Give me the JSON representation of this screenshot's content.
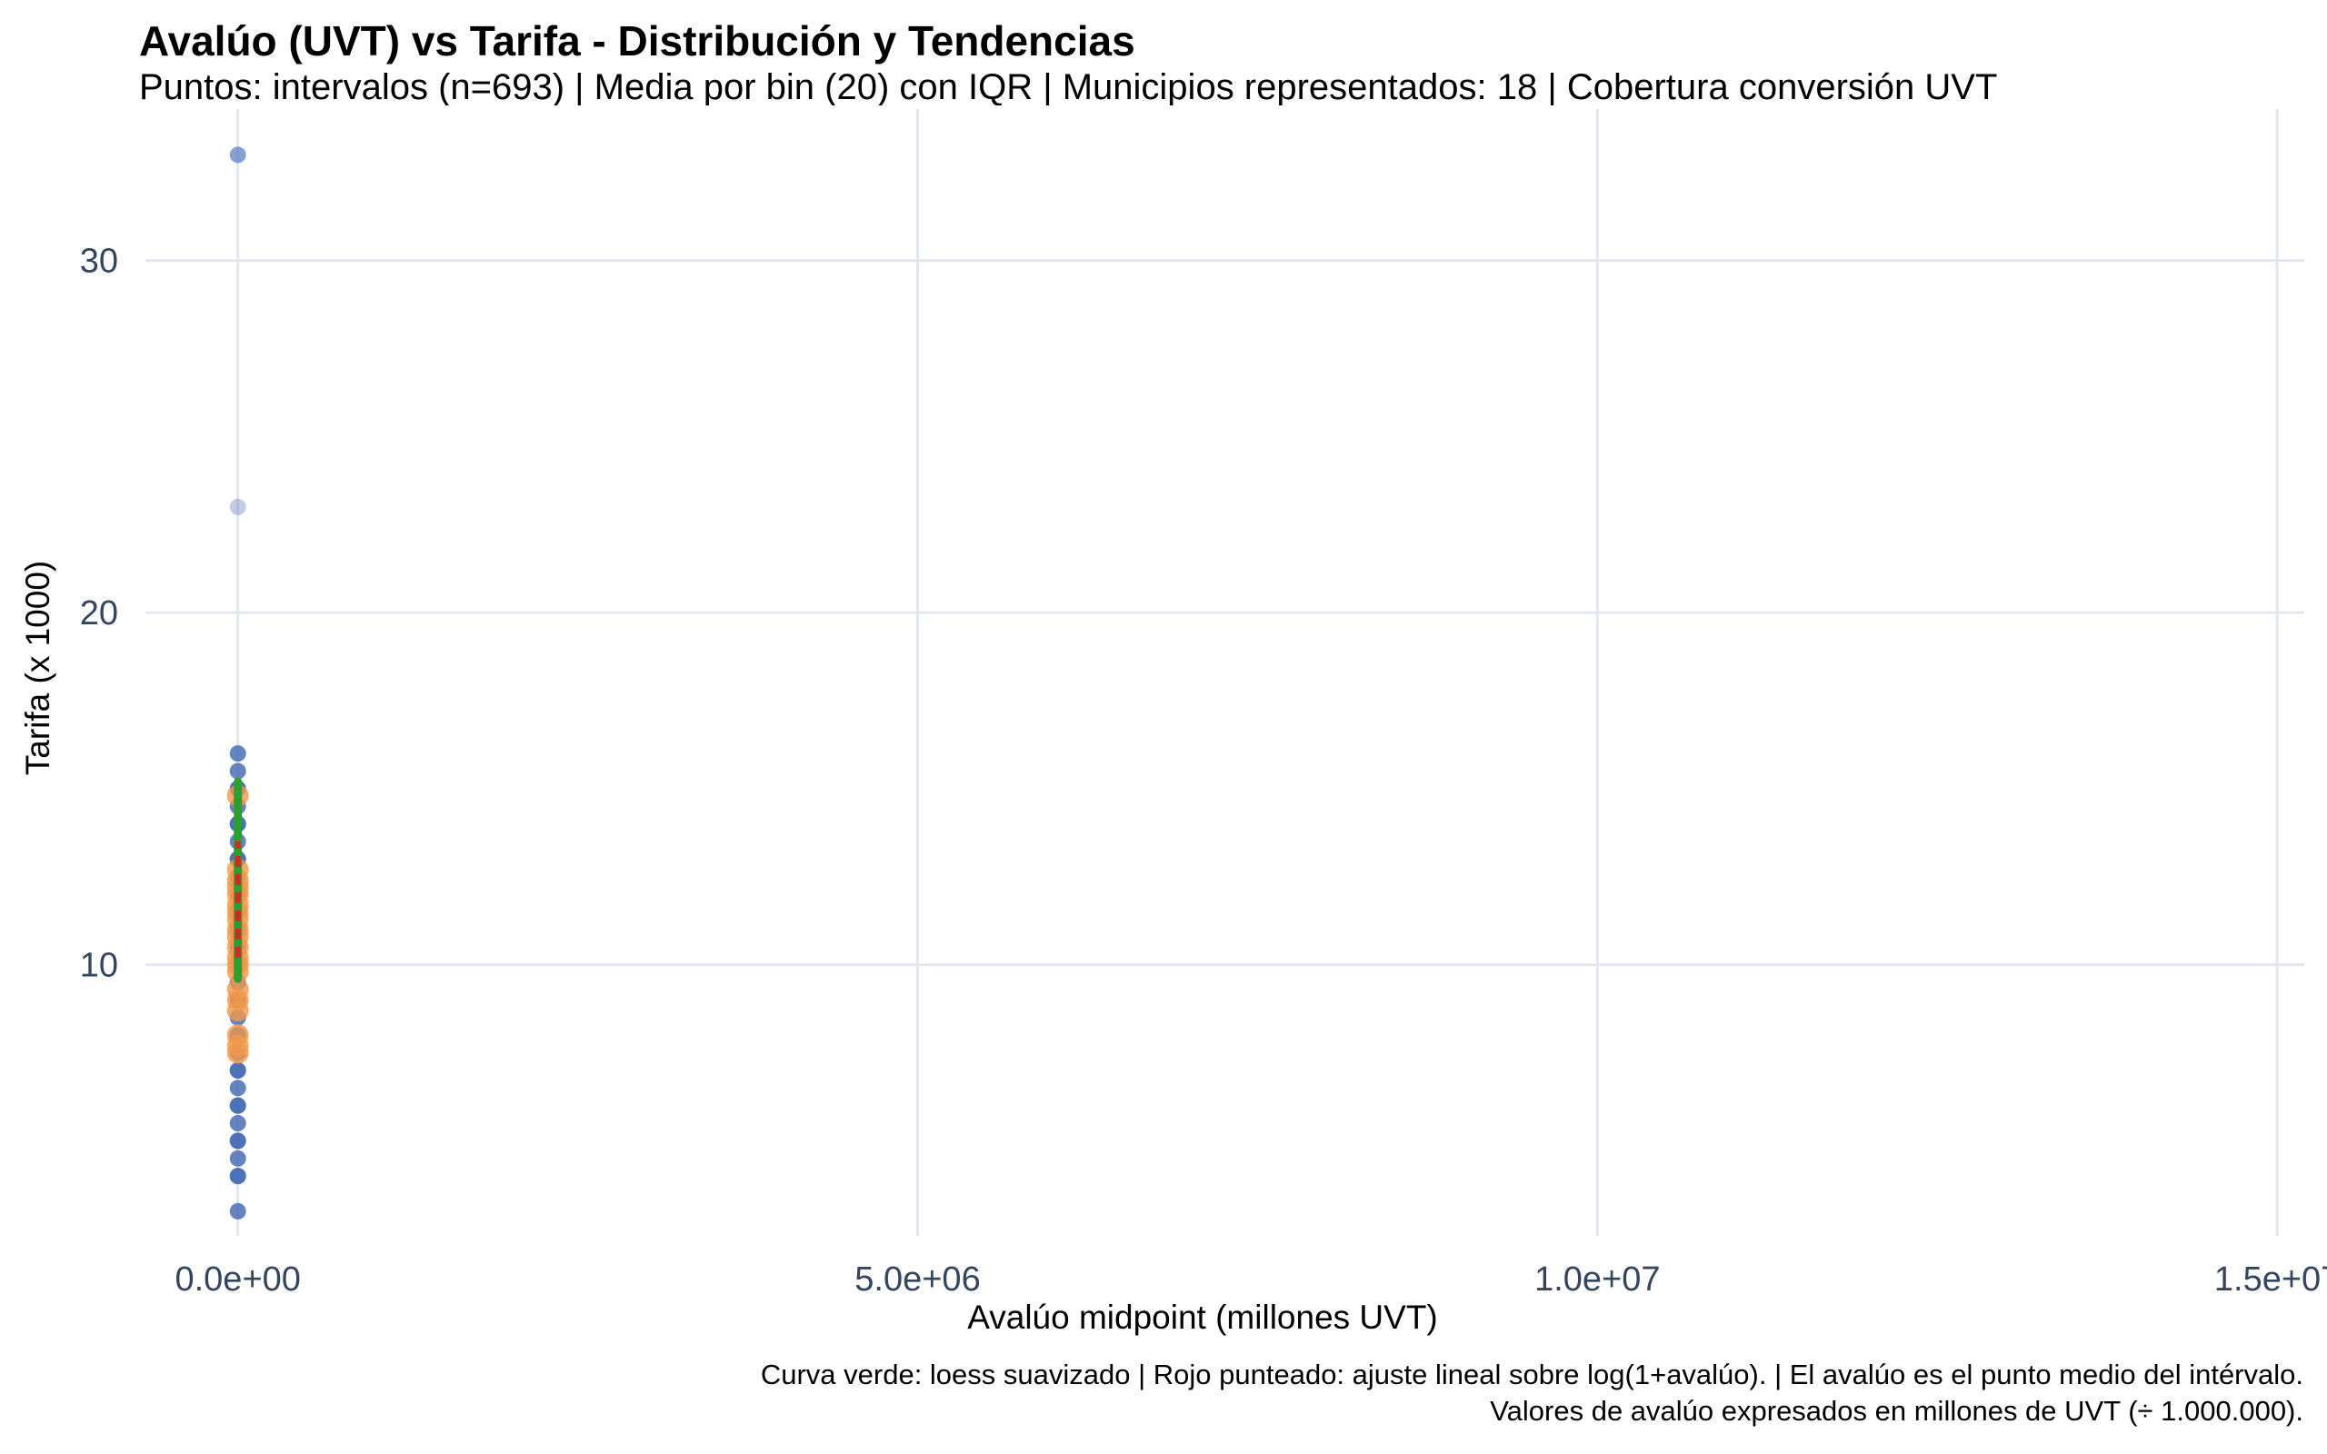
{
  "chart_data": {
    "type": "scatter",
    "title": "Avalúo (UVT) vs Tarifa - Distribución y Tendencias",
    "subtitle": "Puntos: intervalos (n=693) | Media por bin (20) con IQR | Municipios representados: 18 | Cobertura conversión UVT",
    "xlabel": "Avalúo midpoint (millones UVT)",
    "ylabel": "Tarifa (x 1000)",
    "caption_lines": [
      "Curva verde: loess suavizado | Rojo punteado: ajuste lineal sobre log(1+avalúo). | El avalúo es el punto medio del intérvalo.",
      "Valores de avalúo expresados en millones de UVT (÷ 1.000.000)."
    ],
    "xlim": [
      -680000,
      15200000
    ],
    "ylim": [
      2.3,
      34.3
    ],
    "x_ticks": [
      0,
      5000000,
      10000000,
      15000000
    ],
    "x_tick_labels": [
      "0.0e+00",
      "5.0e+06",
      "1.0e+07",
      "1.5e+07"
    ],
    "y_ticks": [
      10,
      20,
      30
    ],
    "y_tick_labels": [
      "10",
      "20",
      "30"
    ],
    "grid": true,
    "series": [
      {
        "kind": "points",
        "color": "#4a6fb5",
        "x": [
          0,
          0,
          0,
          0,
          0,
          0,
          0,
          0,
          0,
          0,
          0,
          0,
          0,
          0,
          0,
          0,
          0,
          0,
          0,
          0,
          0,
          0,
          0,
          0,
          0,
          0,
          0,
          0,
          0,
          0,
          0,
          0,
          0,
          0,
          0,
          0,
          0,
          0,
          0,
          0
        ],
        "y": [
          33,
          23,
          16,
          15.5,
          15,
          14.5,
          14,
          13.5,
          13,
          12.5,
          12,
          11.5,
          11,
          10.5,
          10,
          9.5,
          9,
          8.5,
          8,
          7.5,
          7,
          6.5,
          6,
          5.5,
          5,
          4.5,
          4,
          3,
          4,
          5,
          6,
          7,
          8,
          9,
          10,
          11,
          12,
          13,
          14,
          15
        ]
      },
      {
        "kind": "bin_means",
        "color": "#f2994a",
        "x": [
          0,
          0,
          0,
          0,
          0,
          0,
          0,
          0,
          0,
          0,
          0,
          0,
          0,
          0,
          0,
          0,
          0,
          0,
          0,
          0
        ],
        "y": [
          14.8,
          12.7,
          12.4,
          12.0,
          11.7,
          11.3,
          11.0,
          10.8,
          10.5,
          10.2,
          10.0,
          9.3,
          9.0,
          8.7,
          8.0,
          7.7,
          7.5,
          11.5,
          12.2,
          9.8
        ]
      },
      {
        "kind": "loess",
        "color": "#2ca02c",
        "x": [
          0,
          0
        ],
        "y": [
          9.6,
          15.2
        ]
      },
      {
        "kind": "linear_fit",
        "color": "#d62728",
        "x": [
          0,
          0
        ],
        "y": [
          10.2,
          13.5
        ]
      }
    ]
  }
}
